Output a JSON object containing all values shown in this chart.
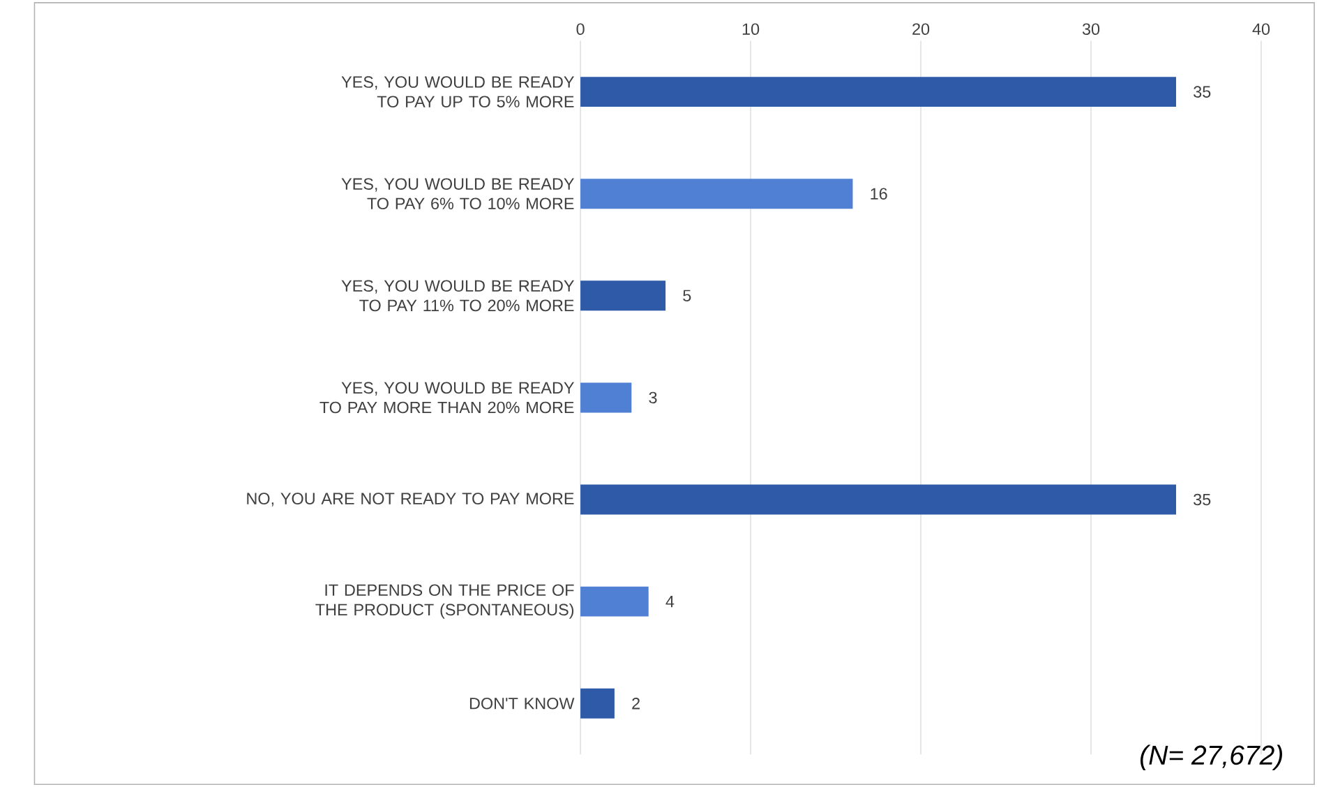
{
  "chart_data": {
    "type": "bar",
    "orientation": "horizontal",
    "categories": [
      "YES, YOU WOULD BE READY TO PAY UP TO 5% MORE",
      "YES, YOU WOULD BE READY TO PAY 6% TO 10% MORE",
      "YES, YOU WOULD BE READY TO PAY 11% TO 20% MORE",
      "YES, YOU WOULD BE READY TO PAY MORE THAN 20% MORE",
      "NO, YOU ARE NOT READY TO PAY MORE",
      "IT DEPENDS ON THE PRICE OF THE PRODUCT (SPONTANEOUS)",
      "DON'T KNOW"
    ],
    "values": [
      35,
      16,
      5,
      3,
      35,
      4,
      2
    ],
    "colors": [
      "#2f5aa8",
      "#4f80d4",
      "#2f5aa8",
      "#4f80d4",
      "#2f5aa8",
      "#4f80d4",
      "#2f5aa8"
    ],
    "xlim": [
      0,
      40
    ],
    "xticks": [
      0,
      10,
      20,
      30,
      40
    ],
    "grid": "x",
    "data_labels": true,
    "annotations": [
      "(N= 27,672)"
    ]
  }
}
